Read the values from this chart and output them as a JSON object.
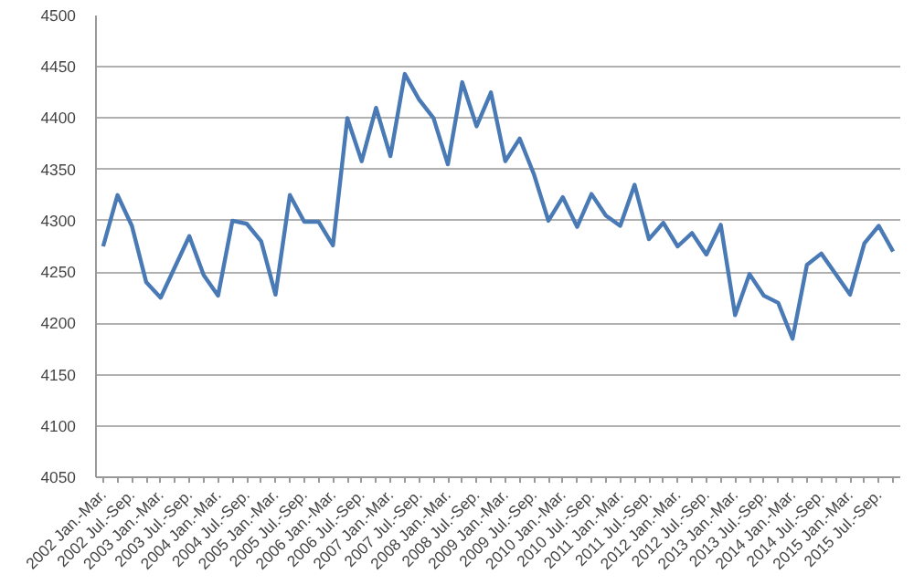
{
  "chart_data": {
    "type": "line",
    "categories": [
      "2002 Jan.-Mar.",
      null,
      "2002 Jul.-Sep.",
      null,
      "2003 Jan.-Mar.",
      null,
      "2003 Jul.-Sep.",
      null,
      "2004 Jan.-Mar.",
      null,
      "2004 Jul.-Sep.",
      null,
      "2005 Jan.-Mar.",
      null,
      "2005 Jul.-Sep.",
      null,
      "2006 Jan.-Mar.",
      null,
      "2006 Jul.-Sep.",
      null,
      "2007 Jan.-Mar.",
      null,
      "2007 Jul.-Sep.",
      null,
      "2008 Jan.-Mar.",
      null,
      "2008 Jul.-Sep.",
      null,
      "2009 Jan.-Mar.",
      null,
      "2009 Jul.-Sep.",
      null,
      "2010 Jan.-Mar.",
      null,
      "2010 Jul.-Sep.",
      null,
      "2011 Jan.-Mar.",
      null,
      "2011 Jul.-Sep.",
      null,
      "2012 Jan.-Mar.",
      null,
      "2012 Jul.-Sep.",
      null,
      "2013 Jan.-Mar.",
      null,
      "2013 Jul.-Sep.",
      null,
      "2014 Jan.-Mar.",
      null,
      "2014 Jul.-Sep.",
      null,
      "2015 Jan.-Mar.",
      null,
      "2015 Jul.-Sep.",
      null
    ],
    "series": [
      {
        "color": "#4a7ab5",
        "values": [
          4275,
          4325,
          4295,
          4240,
          4225,
          4255,
          4285,
          4247,
          4227,
          4300,
          4297,
          4280,
          4228,
          4325,
          4299,
          4299,
          4276,
          4400,
          4358,
          4410,
          4363,
          4443,
          4418,
          4400,
          4355,
          4435,
          4392,
          4425,
          4358,
          4380,
          4345,
          4300,
          4323,
          4294,
          4326,
          4305,
          4295,
          4335,
          4282,
          4298,
          4275,
          4288,
          4267,
          4296,
          4208,
          4248,
          4227,
          4220,
          4185,
          4257,
          4268,
          4248,
          4228,
          4278,
          4295,
          4270
        ]
      }
    ],
    "ylim": [
      4050,
      4500
    ],
    "yticks": [
      4050,
      4100,
      4150,
      4200,
      4250,
      4300,
      4350,
      4400,
      4450,
      4500
    ],
    "grid": "y",
    "marker": "none",
    "line_style": "solid"
  }
}
